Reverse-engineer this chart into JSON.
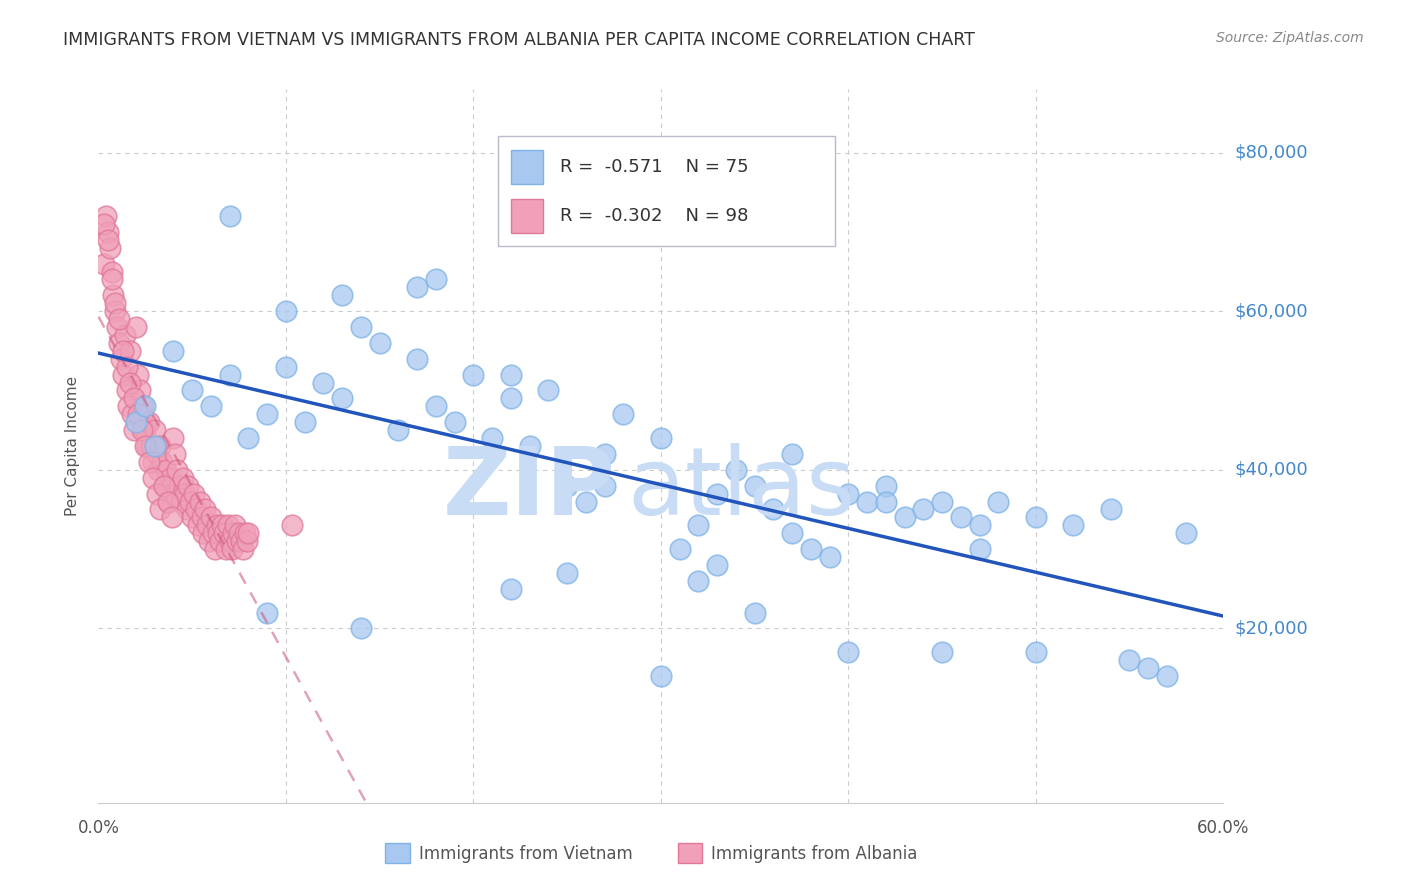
{
  "title": "IMMIGRANTS FROM VIETNAM VS IMMIGRANTS FROM ALBANIA PER CAPITA INCOME CORRELATION CHART",
  "source": "Source: ZipAtlas.com",
  "ylabel": "Per Capita Income",
  "xlim": [
    0.0,
    0.6
  ],
  "ylim": [
    -2000,
    88000
  ],
  "vietnam_R": -0.571,
  "vietnam_N": 75,
  "albania_R": -0.302,
  "albania_N": 98,
  "vietnam_color": "#A8C8F0",
  "albania_color": "#F0A0B8",
  "vietnam_edge_color": "#7EB3E8",
  "albania_edge_color": "#E07898",
  "vietnam_line_color": "#2255BB",
  "albania_line_color": "#CC5577",
  "background_color": "#FFFFFF",
  "watermark_color": "#C8DCF5",
  "grid_color": "#CCCCCC",
  "title_color": "#333333",
  "right_axis_color": "#4488CC",
  "source_color": "#888888",
  "legend_border_color": "#BBBBCC",
  "bottom_label_color": "#555555",
  "vietnam_x": [
    0.02,
    0.025,
    0.03,
    0.04,
    0.05,
    0.06,
    0.07,
    0.08,
    0.09,
    0.1,
    0.11,
    0.12,
    0.13,
    0.14,
    0.15,
    0.16,
    0.17,
    0.18,
    0.19,
    0.2,
    0.21,
    0.22,
    0.23,
    0.24,
    0.25,
    0.26,
    0.27,
    0.28,
    0.3,
    0.31,
    0.32,
    0.33,
    0.34,
    0.35,
    0.36,
    0.37,
    0.38,
    0.39,
    0.4,
    0.41,
    0.42,
    0.43,
    0.44,
    0.45,
    0.46,
    0.47,
    0.48,
    0.5,
    0.52,
    0.54,
    0.17,
    0.22,
    0.07,
    0.1,
    0.32,
    0.37,
    0.42,
    0.47,
    0.09,
    0.14,
    0.25,
    0.3,
    0.35,
    0.4,
    0.45,
    0.5,
    0.55,
    0.56,
    0.57,
    0.58,
    0.27,
    0.22,
    0.33,
    0.13,
    0.18
  ],
  "vietnam_y": [
    46000,
    48000,
    43000,
    55000,
    50000,
    48000,
    52000,
    44000,
    47000,
    53000,
    46000,
    51000,
    49000,
    58000,
    56000,
    45000,
    54000,
    48000,
    46000,
    52000,
    44000,
    49000,
    43000,
    50000,
    38000,
    36000,
    42000,
    47000,
    44000,
    30000,
    33000,
    37000,
    40000,
    38000,
    35000,
    32000,
    30000,
    29000,
    37000,
    36000,
    38000,
    34000,
    35000,
    36000,
    34000,
    33000,
    36000,
    34000,
    33000,
    35000,
    63000,
    52000,
    72000,
    60000,
    26000,
    42000,
    36000,
    30000,
    22000,
    20000,
    27000,
    14000,
    22000,
    17000,
    17000,
    17000,
    16000,
    15000,
    14000,
    32000,
    38000,
    25000,
    28000,
    62000,
    64000
  ],
  "albania_x": [
    0.003,
    0.004,
    0.005,
    0.006,
    0.007,
    0.008,
    0.009,
    0.01,
    0.011,
    0.012,
    0.013,
    0.014,
    0.015,
    0.016,
    0.017,
    0.018,
    0.019,
    0.02,
    0.021,
    0.022,
    0.023,
    0.024,
    0.025,
    0.026,
    0.027,
    0.028,
    0.029,
    0.03,
    0.031,
    0.032,
    0.033,
    0.034,
    0.035,
    0.036,
    0.037,
    0.038,
    0.039,
    0.04,
    0.041,
    0.042,
    0.043,
    0.044,
    0.045,
    0.046,
    0.047,
    0.048,
    0.049,
    0.05,
    0.051,
    0.052,
    0.053,
    0.054,
    0.055,
    0.056,
    0.057,
    0.058,
    0.059,
    0.06,
    0.061,
    0.062,
    0.063,
    0.064,
    0.065,
    0.066,
    0.067,
    0.068,
    0.069,
    0.07,
    0.071,
    0.072,
    0.073,
    0.074,
    0.075,
    0.076,
    0.077,
    0.078,
    0.079,
    0.08,
    0.003,
    0.005,
    0.007,
    0.009,
    0.011,
    0.013,
    0.015,
    0.017,
    0.019,
    0.021,
    0.023,
    0.025,
    0.027,
    0.029,
    0.031,
    0.033,
    0.035,
    0.037,
    0.039,
    0.103
  ],
  "albania_y": [
    66000,
    72000,
    70000,
    68000,
    65000,
    62000,
    60000,
    58000,
    56000,
    54000,
    52000,
    57000,
    50000,
    48000,
    55000,
    47000,
    45000,
    58000,
    52000,
    50000,
    47000,
    48000,
    45000,
    43000,
    46000,
    43000,
    41000,
    45000,
    42000,
    40000,
    43000,
    41000,
    38000,
    40000,
    36000,
    39000,
    37000,
    44000,
    42000,
    40000,
    38000,
    36000,
    39000,
    37000,
    35000,
    38000,
    36000,
    34000,
    37000,
    35000,
    33000,
    36000,
    34000,
    32000,
    35000,
    33000,
    31000,
    34000,
    32000,
    30000,
    33000,
    32000,
    31000,
    33000,
    32000,
    30000,
    33000,
    31000,
    30000,
    32000,
    33000,
    31000,
    32000,
    31000,
    30000,
    32000,
    31000,
    32000,
    71000,
    69000,
    64000,
    61000,
    59000,
    55000,
    53000,
    51000,
    49000,
    47000,
    45000,
    43000,
    41000,
    39000,
    37000,
    35000,
    38000,
    36000,
    34000,
    33000
  ]
}
